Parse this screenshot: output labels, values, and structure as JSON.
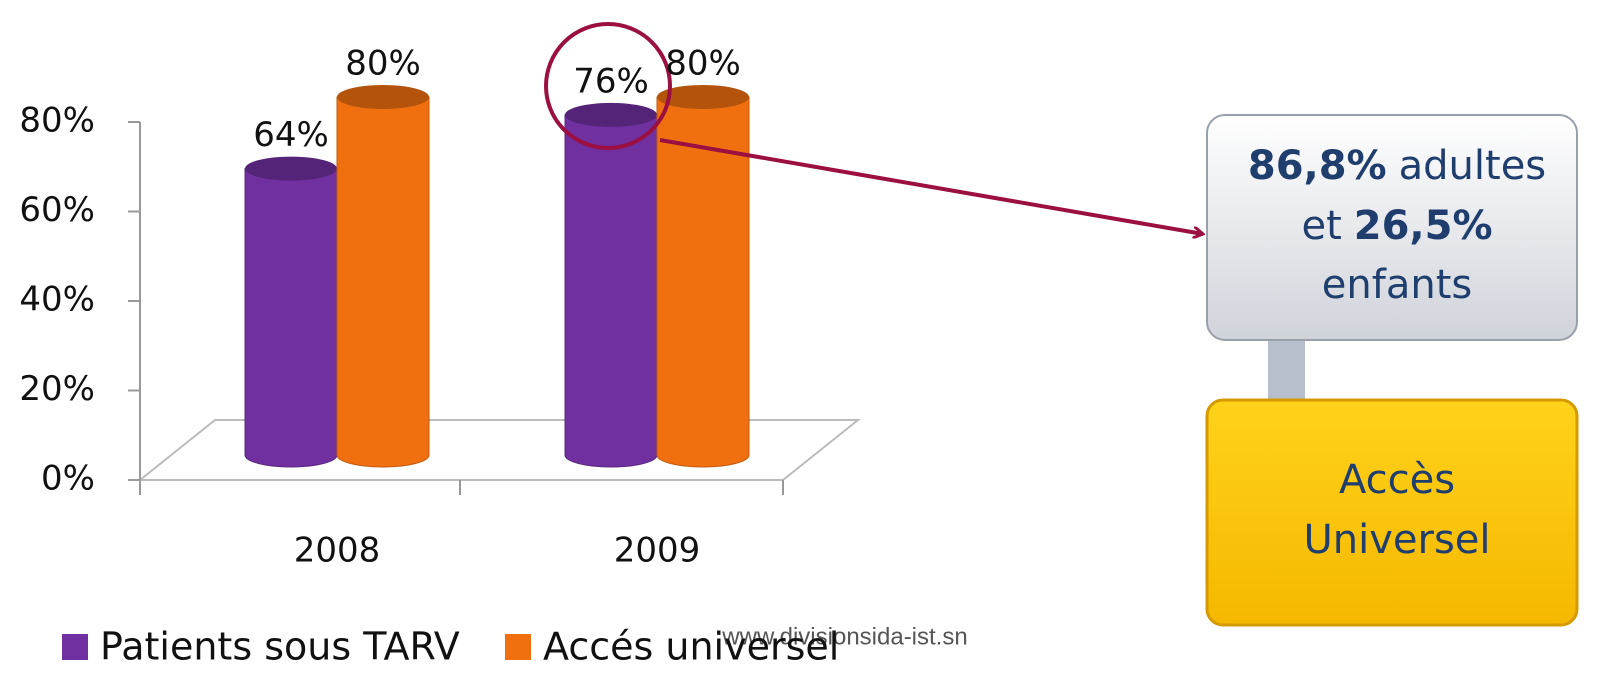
{
  "chart_data": {
    "type": "bar3d",
    "categories": [
      "2008",
      "2009"
    ],
    "series": [
      {
        "name": "Patients sous TARV",
        "color": "#7030a0",
        "values": [
          64,
          76
        ],
        "value_labels": [
          "64%",
          "76%"
        ]
      },
      {
        "name": "Accés universel",
        "color": "#f07010",
        "values": [
          80,
          80
        ],
        "value_labels": [
          "80%",
          "80%"
        ]
      }
    ],
    "ylim": [
      0,
      80
    ],
    "yticks": [
      {
        "value": 0,
        "label": "0%"
      },
      {
        "value": 20,
        "label": "20%"
      },
      {
        "value": 40,
        "label": "40%"
      },
      {
        "value": 60,
        "label": "60%"
      },
      {
        "value": 80,
        "label": "80%"
      }
    ],
    "legend": "bottom"
  },
  "callout": {
    "adults_value": "86,8%",
    "adults_label": "adultes",
    "children_prefix": "et",
    "children_value": "26,5%",
    "children_label": "enfants"
  },
  "goal": {
    "lines": [
      "Accès",
      "Universel"
    ]
  },
  "watermark": "www.divisionsida-ist.sn"
}
